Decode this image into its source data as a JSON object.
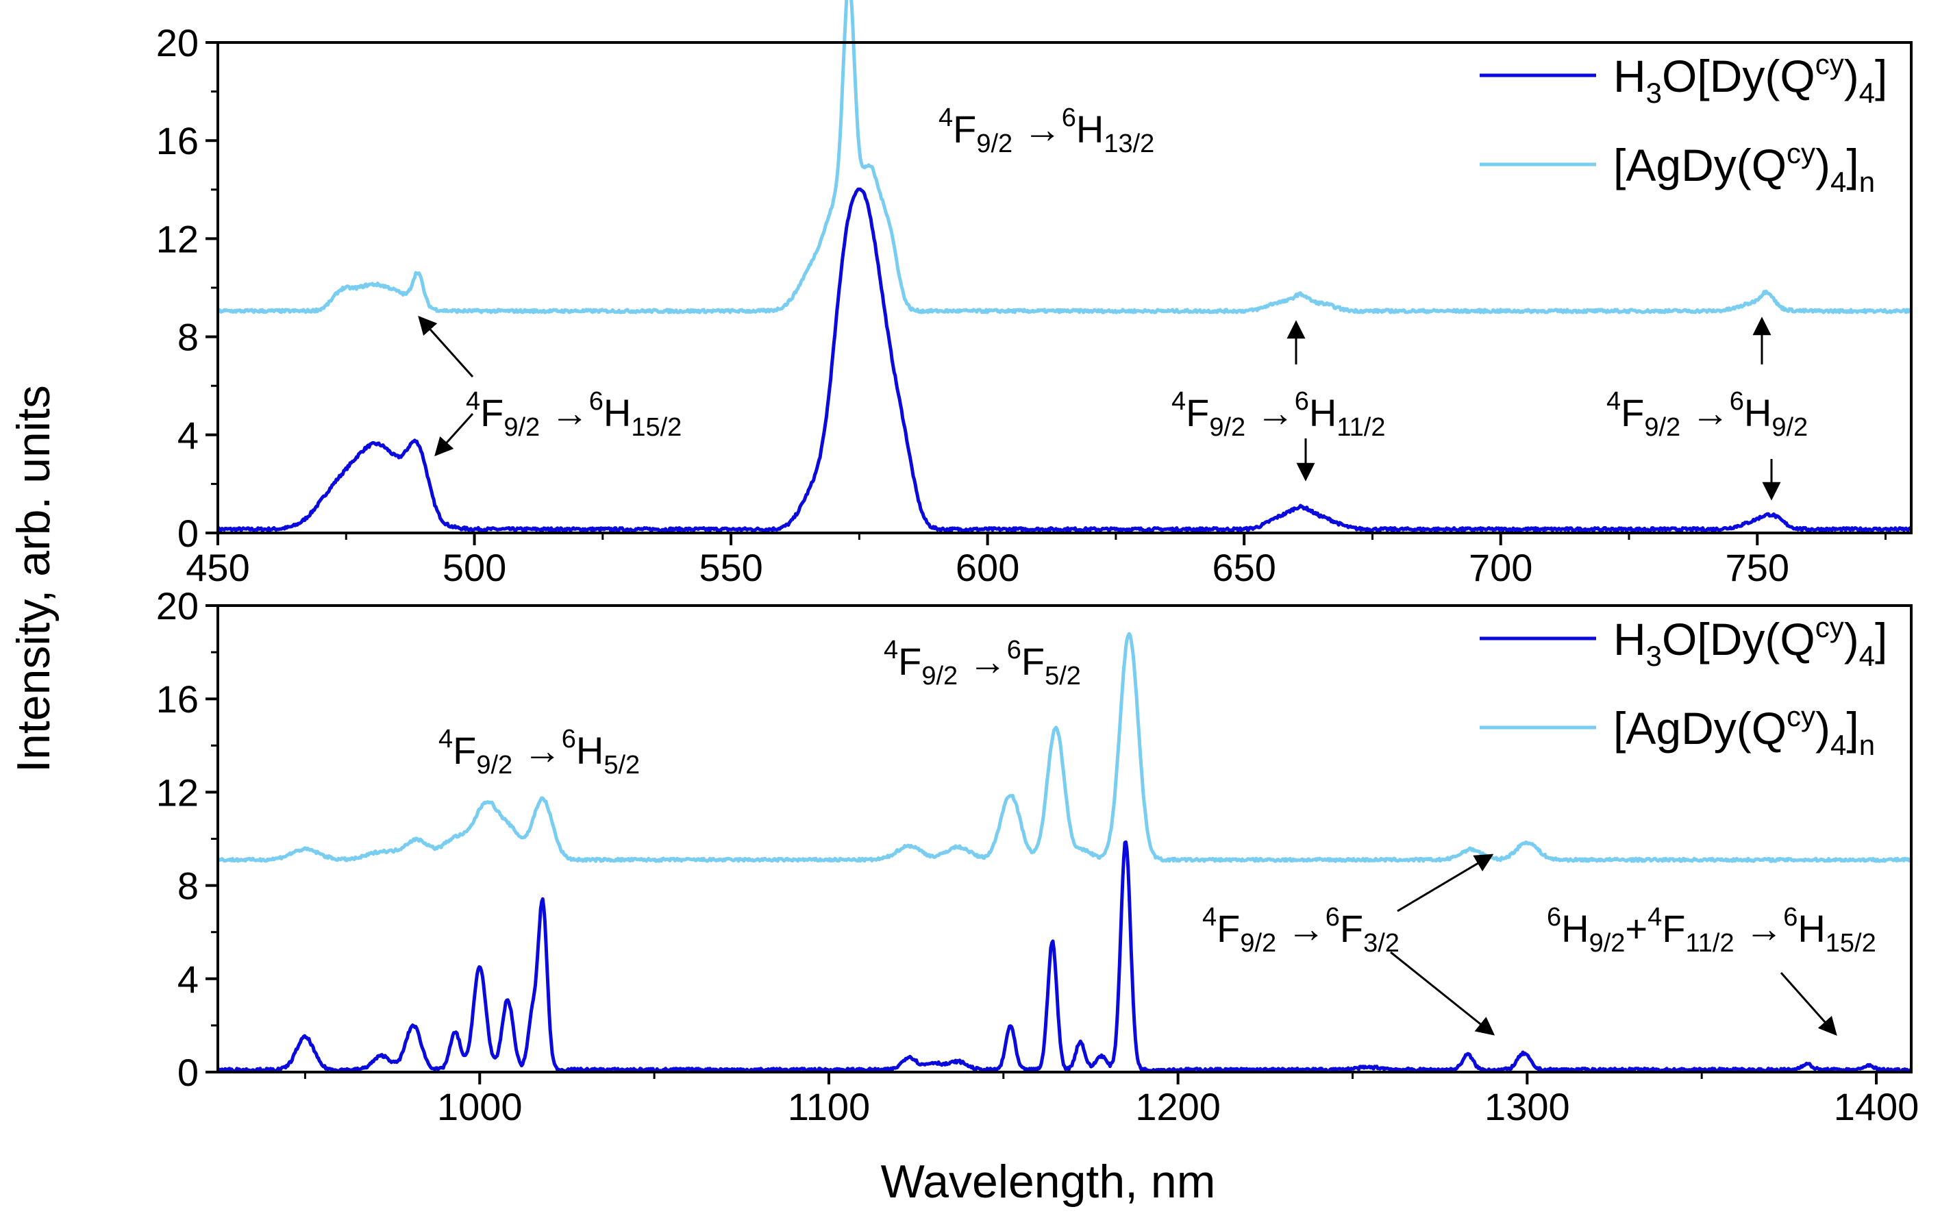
{
  "figure": {
    "ylabel": "Intensity, arb. units",
    "xlabel": "Wavelength, nm"
  },
  "colors": {
    "dark_series": "#0a0adc",
    "light_series": "#78cdf0",
    "axis": "#000000"
  },
  "chart_data": [
    {
      "type": "line",
      "panel": "top",
      "xlim": [
        450,
        780
      ],
      "ylim": [
        0,
        20
      ],
      "xticks": [
        450,
        500,
        550,
        600,
        650,
        700,
        750
      ],
      "xtick_labels": [
        "450",
        "500",
        "550",
        "600",
        "650",
        "700",
        "750"
      ],
      "yticks": [
        0,
        4,
        8,
        12,
        16,
        20
      ],
      "ytick_labels": [
        "0",
        "4",
        "8",
        "12",
        "16",
        "20"
      ],
      "legend_position": "top-right",
      "series": [
        {
          "name": "H3O[Dy(Qcy)4]",
          "label": {
            "pre": "H",
            "sub1": "3",
            "mid": "O[Dy(Q",
            "sup": "cy",
            "post": ")",
            "sub2": "4",
            "end": "]"
          },
          "color_key": "dark_series",
          "baseline": 0.15,
          "peaks": [
            {
              "center": 481,
              "height": 3.45,
              "width": 5.5
            },
            {
              "center": 489,
              "height": 2.3,
              "width": 2.0
            },
            {
              "center": 472,
              "height": 0.8,
              "width": 3.5
            },
            {
              "center": 566,
              "height": 1.4,
              "width": 2.5
            },
            {
              "center": 572,
              "height": 8.6,
              "width": 2.6
            },
            {
              "center": 576,
              "height": 8.9,
              "width": 2.6
            },
            {
              "center": 580,
              "height": 5.8,
              "width": 2.8
            },
            {
              "center": 584,
              "height": 1.8,
              "width": 2.0
            },
            {
              "center": 657,
              "height": 0.45,
              "width": 2.5
            },
            {
              "center": 661,
              "height": 0.6,
              "width": 2.0
            },
            {
              "center": 665,
              "height": 0.45,
              "width": 3.0
            },
            {
              "center": 750,
              "height": 0.3,
              "width": 3.0
            },
            {
              "center": 753,
              "height": 0.4,
              "width": 2.0
            }
          ]
        },
        {
          "name": "[AgDy(Qcy)4]n",
          "label": {
            "pre": "[AgDy(Q",
            "sup": "cy",
            "post": ")",
            "sub1": "4",
            "mid": "]",
            "sub2": "n"
          },
          "color_key": "light_series",
          "baseline": 9.05,
          "peaks": [
            {
              "center": 474,
              "height": 0.55,
              "width": 1.8
            },
            {
              "center": 479,
              "height": 0.9,
              "width": 3.5
            },
            {
              "center": 485,
              "height": 0.6,
              "width": 3.5
            },
            {
              "center": 489,
              "height": 1.25,
              "width": 1.0
            },
            {
              "center": 566,
              "height": 1.6,
              "width": 2.8
            },
            {
              "center": 573,
              "height": 9.4,
              "width": 1.1
            },
            {
              "center": 571,
              "height": 4.0,
              "width": 2.5
            },
            {
              "center": 577,
              "height": 5.6,
              "width": 2.2
            },
            {
              "center": 581,
              "height": 2.4,
              "width": 1.6
            },
            {
              "center": 657,
              "height": 0.35,
              "width": 2.5
            },
            {
              "center": 661,
              "height": 0.5,
              "width": 1.5
            },
            {
              "center": 665,
              "height": 0.3,
              "width": 2.5
            },
            {
              "center": 750,
              "height": 0.35,
              "width": 3.0
            },
            {
              "center": 752,
              "height": 0.5,
              "width": 1.2
            }
          ]
        }
      ],
      "annotations": [
        {
          "id": "ann-15-2",
          "main": "F",
          "pre_sup": "4",
          "sub1": "9/2",
          "arrow": "→",
          "sup2": "6",
          "main2": "H",
          "sub2": "15/2"
        },
        {
          "id": "ann-13-2",
          "main": "F",
          "pre_sup": "4",
          "sub1": "9/2",
          "arrow": "→",
          "sup2": "6",
          "main2": "H",
          "sub2": "13/2"
        },
        {
          "id": "ann-11-2",
          "main": "F",
          "pre_sup": "4",
          "sub1": "9/2",
          "arrow": "→",
          "sup2": "6",
          "main2": "H",
          "sub2": "11/2"
        },
        {
          "id": "ann-9-2",
          "main": "F",
          "pre_sup": "4",
          "sub1": "9/2",
          "arrow": "→",
          "sup2": "6",
          "main2": "H",
          "sub2": "9/2"
        }
      ]
    },
    {
      "type": "line",
      "panel": "bottom",
      "xlim": [
        925,
        1410
      ],
      "ylim": [
        0,
        20
      ],
      "xticks": [
        1000,
        1100,
        1200,
        1300,
        1400
      ],
      "xtick_labels": [
        "1000",
        "1100",
        "1200",
        "1300",
        "1400"
      ],
      "yticks": [
        0,
        4,
        8,
        12,
        16,
        20
      ],
      "ytick_labels": [
        "0",
        "4",
        "8",
        "12",
        "16",
        "20"
      ],
      "legend_position": "top-right",
      "series": [
        {
          "name": "H3O[Dy(Qcy)4]",
          "label": {
            "pre": "H",
            "sub1": "3",
            "mid": "O[Dy(Q",
            "sup": "cy",
            "post": ")",
            "sub2": "4",
            "end": "]"
          },
          "color_key": "dark_series",
          "baseline": 0.1,
          "peaks": [
            {
              "center": 950,
              "height": 1.4,
              "width": 2.5
            },
            {
              "center": 972,
              "height": 0.6,
              "width": 2.5
            },
            {
              "center": 981,
              "height": 1.9,
              "width": 2.2
            },
            {
              "center": 993,
              "height": 1.6,
              "width": 1.5
            },
            {
              "center": 1000,
              "height": 4.4,
              "width": 1.8
            },
            {
              "center": 1008,
              "height": 3.0,
              "width": 1.6
            },
            {
              "center": 1015,
              "height": 2.2,
              "width": 1.2
            },
            {
              "center": 1018,
              "height": 7.2,
              "width": 1.3
            },
            {
              "center": 1123,
              "height": 0.55,
              "width": 2.0
            },
            {
              "center": 1130,
              "height": 0.3,
              "width": 2.5
            },
            {
              "center": 1137,
              "height": 0.35,
              "width": 2.5
            },
            {
              "center": 1152,
              "height": 1.9,
              "width": 1.3
            },
            {
              "center": 1164,
              "height": 5.5,
              "width": 1.3
            },
            {
              "center": 1172,
              "height": 1.2,
              "width": 1.3
            },
            {
              "center": 1178,
              "height": 0.6,
              "width": 1.5
            },
            {
              "center": 1185,
              "height": 9.8,
              "width": 1.4
            },
            {
              "center": 1255,
              "height": 0.1,
              "width": 4.0
            },
            {
              "center": 1283,
              "height": 0.65,
              "width": 1.5
            },
            {
              "center": 1299,
              "height": 0.7,
              "width": 1.8
            },
            {
              "center": 1380,
              "height": 0.25,
              "width": 1.5
            },
            {
              "center": 1398,
              "height": 0.2,
              "width": 1.2
            }
          ]
        },
        {
          "name": "[AgDy(Qcy)4]n",
          "label": {
            "pre": "[AgDy(Q",
            "sup": "cy",
            "post": ")",
            "sub1": "4",
            "mid": "]",
            "sub2": "n"
          },
          "color_key": "light_series",
          "baseline": 9.1,
          "peaks": [
            {
              "center": 950,
              "height": 0.45,
              "width": 4.0
            },
            {
              "center": 972,
              "height": 0.35,
              "width": 4.0
            },
            {
              "center": 982,
              "height": 0.85,
              "width": 3.5
            },
            {
              "center": 993,
              "height": 0.9,
              "width": 3.5
            },
            {
              "center": 1002,
              "height": 2.4,
              "width": 3.5
            },
            {
              "center": 1009,
              "height": 1.1,
              "width": 3.0
            },
            {
              "center": 1018,
              "height": 2.6,
              "width": 2.8
            },
            {
              "center": 1123,
              "height": 0.6,
              "width": 3.5
            },
            {
              "center": 1137,
              "height": 0.55,
              "width": 3.5
            },
            {
              "center": 1152,
              "height": 2.8,
              "width": 2.8
            },
            {
              "center": 1165,
              "height": 5.7,
              "width": 2.4
            },
            {
              "center": 1173,
              "height": 0.4,
              "width": 2.5
            },
            {
              "center": 1186,
              "height": 9.7,
              "width": 2.6
            },
            {
              "center": 1284,
              "height": 0.45,
              "width": 3.0
            },
            {
              "center": 1300,
              "height": 0.75,
              "width": 3.0
            }
          ]
        }
      ],
      "annotations": [
        {
          "id": "ann-5-2",
          "main": "F",
          "pre_sup": "4",
          "sub1": "9/2",
          "arrow": "→",
          "sup2": "6",
          "main2": "H",
          "sub2": "5/2"
        },
        {
          "id": "ann-f5-2",
          "main": "F",
          "pre_sup": "4",
          "sub1": "9/2",
          "arrow": "→",
          "sup2": "6",
          "main2": "F",
          "sub2": "5/2"
        },
        {
          "id": "ann-f3-2",
          "main": "F",
          "pre_sup": "4",
          "sub1": "9/2",
          "arrow": "→",
          "sup2": "6",
          "main2": "F",
          "sub2": "3/2"
        },
        {
          "id": "ann-h15-2",
          "pre_sup_a": "6",
          "main_a": "H",
          "sub_a": "9/2",
          "plus": "+",
          "pre_sup_b": "4",
          "main_b": "F",
          "sub_b": "11/2",
          "arrow": "→",
          "pre_sup_c": "6",
          "main_c": "H",
          "sub_c": "15/2"
        }
      ]
    }
  ]
}
